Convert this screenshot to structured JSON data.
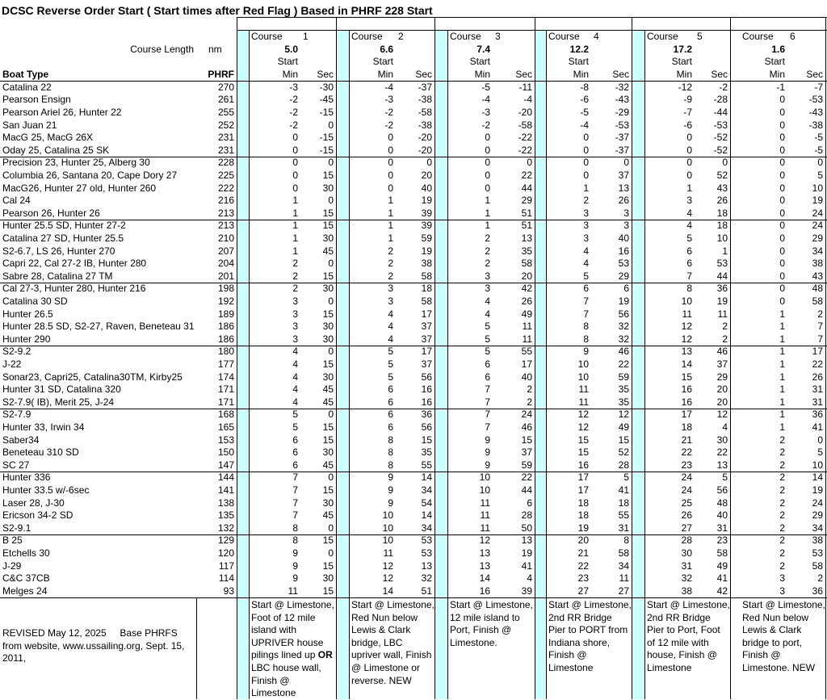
{
  "title": "DCSC Reverse Order Start ( Start times after Red Flag )  Based in PHRF 228 Start",
  "header": {
    "course_length_label": "Course Length",
    "unit": "nm",
    "boat_type": "Boat Type",
    "phrf": "PHRF"
  },
  "courses": [
    {
      "label": "Course",
      "number": "1",
      "length": "5.0",
      "start": "Start",
      "min": "Min",
      "sec": "Sec",
      "note": [
        {
          "text": "Start @ Limestone, Foot of 12 mile island with UPRIVER house pilings lined up "
        },
        {
          "text": "OR",
          "bold": true
        },
        {
          "text": " LBC house wall, Finish @ Limestone"
        }
      ]
    },
    {
      "label": "Course",
      "number": "2",
      "length": "6.6",
      "start": "Start",
      "min": "Min",
      "sec": "Sec",
      "note": [
        {
          "text": "Start @ Limestone,  Red Nun below Lewis & Clark bridge, LBC upriver wall, Finish @ Limestone or reverse. NEW"
        }
      ]
    },
    {
      "label": "Course",
      "number": "3",
      "length": "7.4",
      "start": "Start",
      "min": "Min",
      "sec": "Sec",
      "note": [
        {
          "text": "Start @ Limestone, 12 mile island to Port, Finish @ Limestone."
        }
      ]
    },
    {
      "label": "Course",
      "number": "4",
      "length": "12.2",
      "start": "Start",
      "min": "Min",
      "sec": "Sec",
      "note": [
        {
          "text": "Start @ Limestone, 2nd RR Bridge Pier to PORT from Indiana shore, Finish @ Limestone"
        }
      ]
    },
    {
      "label": "Course",
      "number": "5",
      "length": "17.2",
      "start": "Start",
      "min": "Min",
      "sec": "Sec",
      "note": [
        {
          "text": "Start @ Limestone,  2nd RR Bridge Pier to Port,  Foot of 12 mile with house, Finish @ Limestone"
        }
      ]
    },
    {
      "label": "Course",
      "number": "6",
      "length": "1.6",
      "start": "Start",
      "min": "Min",
      "sec": "Sec",
      "note": [
        {
          "text": "Start @ Limestone, Red Nun below Lewis & Clark bridge to port, Finish @ Limestone. NEW"
        }
      ]
    }
  ],
  "rows": [
    {
      "boat": "Catalina 22",
      "phrf": 270,
      "min": [
        -3,
        -4,
        -5,
        -8,
        -12,
        -1
      ],
      "sec": [
        -30,
        -37,
        -11,
        -32,
        -2,
        -7
      ]
    },
    {
      "boat": "Pearson Ensign",
      "phrf": 261,
      "min": [
        -2,
        -3,
        -4,
        -6,
        -9,
        0
      ],
      "sec": [
        -45,
        -38,
        -4,
        -43,
        -28,
        -53
      ]
    },
    {
      "boat": "Pearson Ariel 26, Hunter 22",
      "phrf": 255,
      "min": [
        -2,
        -2,
        -3,
        -5,
        -7,
        0
      ],
      "sec": [
        -15,
        -58,
        -20,
        -29,
        -44,
        -43
      ]
    },
    {
      "boat": "San Juan 21",
      "phrf": 252,
      "min": [
        -2,
        -2,
        -2,
        -4,
        -6,
        0
      ],
      "sec": [
        0,
        -38,
        -58,
        -53,
        -53,
        -38
      ]
    },
    {
      "boat": "MacG 25, MacG 26X",
      "phrf": 231,
      "min": [
        0,
        0,
        0,
        0,
        0,
        0
      ],
      "sec": [
        -15,
        -20,
        -22,
        -37,
        -52,
        -5
      ]
    },
    {
      "boat": "Oday 25, Catalina 25 SK",
      "phrf": 231,
      "min": [
        0,
        0,
        0,
        0,
        0,
        0
      ],
      "sec": [
        -15,
        -20,
        -22,
        -37,
        -52,
        -5
      ]
    },
    {
      "boat": "Precision 23, Hunter 25, Alberg 30",
      "phrf": 228,
      "min": [
        0,
        0,
        0,
        0,
        0,
        0
      ],
      "sec": [
        0,
        0,
        0,
        0,
        0,
        0
      ]
    },
    {
      "boat": "Columbia 26, Santana 20, Cape Dory 27",
      "phrf": 225,
      "min": [
        0,
        0,
        0,
        0,
        0,
        0
      ],
      "sec": [
        15,
        20,
        22,
        37,
        52,
        5
      ]
    },
    {
      "boat": "MacG26, Hunter 27 old, Hunter 260",
      "phrf": 222,
      "min": [
        0,
        0,
        0,
        1,
        1,
        0
      ],
      "sec": [
        30,
        40,
        44,
        13,
        43,
        10
      ]
    },
    {
      "boat": "Cal 24",
      "phrf": 216,
      "min": [
        1,
        1,
        1,
        2,
        3,
        0
      ],
      "sec": [
        0,
        19,
        29,
        26,
        26,
        19
      ]
    },
    {
      "boat": "Pearson 26, Hunter 26",
      "phrf": 213,
      "min": [
        1,
        1,
        1,
        3,
        4,
        0
      ],
      "sec": [
        15,
        39,
        51,
        3,
        18,
        24
      ]
    },
    {
      "boat": "Hunter 25.5 SD, Hunter 27-2",
      "phrf": 213,
      "min": [
        1,
        1,
        1,
        3,
        4,
        0
      ],
      "sec": [
        15,
        39,
        51,
        3,
        18,
        24
      ]
    },
    {
      "boat": "Catalina 27 SD, Hunter 25.5",
      "phrf": 210,
      "min": [
        1,
        1,
        2,
        3,
        5,
        0
      ],
      "sec": [
        30,
        59,
        13,
        40,
        10,
        29
      ]
    },
    {
      "boat": "S2-6.7, LS 26, Hunter 270",
      "phrf": 207,
      "min": [
        1,
        2,
        2,
        4,
        6,
        0
      ],
      "sec": [
        45,
        19,
        35,
        16,
        1,
        34
      ]
    },
    {
      "boat": "Capri 22, Cal 27-2 IB, Hunter 280",
      "phrf": 204,
      "min": [
        2,
        2,
        2,
        4,
        6,
        0
      ],
      "sec": [
        0,
        38,
        58,
        53,
        53,
        38
      ]
    },
    {
      "boat": "Sabre 28, Catalina 27 TM",
      "phrf": 201,
      "min": [
        2,
        2,
        3,
        5,
        7,
        0
      ],
      "sec": [
        15,
        58,
        20,
        29,
        44,
        43
      ]
    },
    {
      "boat": "Cal 27-3, Hunter 280, Hunter 216",
      "phrf": 198,
      "min": [
        2,
        3,
        3,
        6,
        8,
        0
      ],
      "sec": [
        30,
        18,
        42,
        6,
        36,
        48
      ]
    },
    {
      "boat": "Catalina 30 SD",
      "phrf": 192,
      "min": [
        3,
        3,
        4,
        7,
        10,
        0
      ],
      "sec": [
        0,
        58,
        26,
        19,
        19,
        58
      ]
    },
    {
      "boat": "Hunter 26.5",
      "phrf": 189,
      "min": [
        3,
        4,
        4,
        7,
        11,
        1
      ],
      "sec": [
        15,
        17,
        49,
        56,
        11,
        2
      ]
    },
    {
      "boat": "Hunter 28.5 SD, S2-27, Raven, Beneteau 31",
      "phrf": 186,
      "min": [
        3,
        4,
        5,
        8,
        12,
        1
      ],
      "sec": [
        30,
        37,
        11,
        32,
        2,
        7
      ]
    },
    {
      "boat": "Hunter 290",
      "phrf": 186,
      "min": [
        3,
        4,
        5,
        8,
        12,
        1
      ],
      "sec": [
        30,
        37,
        11,
        32,
        2,
        7
      ]
    },
    {
      "boat": "S2-9.2",
      "phrf": 180,
      "min": [
        4,
        5,
        5,
        9,
        13,
        1
      ],
      "sec": [
        0,
        17,
        55,
        46,
        46,
        17
      ]
    },
    {
      "boat": "J-22",
      "phrf": 177,
      "min": [
        4,
        5,
        6,
        10,
        14,
        1
      ],
      "sec": [
        15,
        37,
        17,
        22,
        37,
        22
      ]
    },
    {
      "boat": "Sonar23, Capri25, Catalina30TM, Kirby25",
      "phrf": 174,
      "min": [
        4,
        5,
        6,
        10,
        15,
        1
      ],
      "sec": [
        30,
        56,
        40,
        59,
        29,
        26
      ]
    },
    {
      "boat": "Hunter 31 SD, Catalina 320",
      "phrf": 171,
      "min": [
        4,
        6,
        7,
        11,
        16,
        1
      ],
      "sec": [
        45,
        16,
        2,
        35,
        20,
        31
      ]
    },
    {
      "boat": "S2-7.9( IB), Merit 25, J-24",
      "phrf": 171,
      "min": [
        4,
        6,
        7,
        11,
        16,
        1
      ],
      "sec": [
        45,
        16,
        2,
        35,
        20,
        31
      ]
    },
    {
      "boat": "S2-7.9",
      "phrf": 168,
      "min": [
        5,
        6,
        7,
        12,
        17,
        1
      ],
      "sec": [
        0,
        36,
        24,
        12,
        12,
        36
      ]
    },
    {
      "boat": "Hunter 33, Irwin 34",
      "phrf": 165,
      "min": [
        5,
        6,
        7,
        12,
        18,
        1
      ],
      "sec": [
        15,
        56,
        46,
        49,
        4,
        41
      ]
    },
    {
      "boat": "Saber34",
      "phrf": 153,
      "min": [
        6,
        8,
        9,
        15,
        21,
        2
      ],
      "sec": [
        15,
        15,
        15,
        15,
        30,
        0
      ]
    },
    {
      "boat": "Beneteau 310 SD",
      "phrf": 150,
      "min": [
        6,
        8,
        9,
        15,
        22,
        2
      ],
      "sec": [
        30,
        35,
        37,
        52,
        22,
        5
      ]
    },
    {
      "boat": "SC 27",
      "phrf": 147,
      "min": [
        6,
        8,
        9,
        16,
        23,
        2
      ],
      "sec": [
        45,
        55,
        59,
        28,
        13,
        10
      ]
    },
    {
      "boat": "Hunter 336",
      "phrf": 144,
      "min": [
        7,
        9,
        10,
        17,
        24,
        2
      ],
      "sec": [
        0,
        14,
        22,
        5,
        5,
        14
      ]
    },
    {
      "boat": "Hunter 33.5 w/-6sec",
      "phrf": 141,
      "min": [
        7,
        9,
        10,
        17,
        24,
        2
      ],
      "sec": [
        15,
        34,
        44,
        41,
        56,
        19
      ]
    },
    {
      "boat": "Laser 28, J-30",
      "phrf": 138,
      "min": [
        7,
        9,
        11,
        18,
        25,
        2
      ],
      "sec": [
        30,
        54,
        6,
        18,
        48,
        24
      ]
    },
    {
      "boat": "Ericson 34-2 SD",
      "phrf": 135,
      "min": [
        7,
        10,
        11,
        18,
        26,
        2
      ],
      "sec": [
        45,
        14,
        28,
        55,
        40,
        29
      ]
    },
    {
      "boat": "S2-9.1",
      "phrf": 132,
      "min": [
        8,
        10,
        11,
        19,
        27,
        2
      ],
      "sec": [
        0,
        34,
        50,
        31,
        31,
        34
      ]
    },
    {
      "boat": "B 25",
      "phrf": 129,
      "min": [
        8,
        10,
        12,
        20,
        28,
        2
      ],
      "sec": [
        15,
        53,
        13,
        8,
        23,
        38
      ]
    },
    {
      "boat": "Etchells 30",
      "phrf": 120,
      "min": [
        9,
        11,
        13,
        21,
        30,
        2
      ],
      "sec": [
        0,
        53,
        19,
        58,
        58,
        53
      ]
    },
    {
      "boat": "J-29",
      "phrf": 117,
      "min": [
        9,
        12,
        13,
        22,
        31,
        2
      ],
      "sec": [
        15,
        13,
        41,
        34,
        49,
        58
      ]
    },
    {
      "boat": "C&C 37CB",
      "phrf": 114,
      "min": [
        9,
        12,
        14,
        23,
        32,
        3
      ],
      "sec": [
        30,
        32,
        4,
        11,
        41,
        2
      ]
    },
    {
      "boat": "Melges 24",
      "phrf": 93,
      "min": [
        11,
        14,
        16,
        27,
        38,
        3
      ],
      "sec": [
        15,
        51,
        39,
        27,
        42,
        36
      ]
    }
  ],
  "revised": "REVISED May 12, 2025     Base PHRFS from website, www.ussailing.org, Sept. 15, 2011,"
}
